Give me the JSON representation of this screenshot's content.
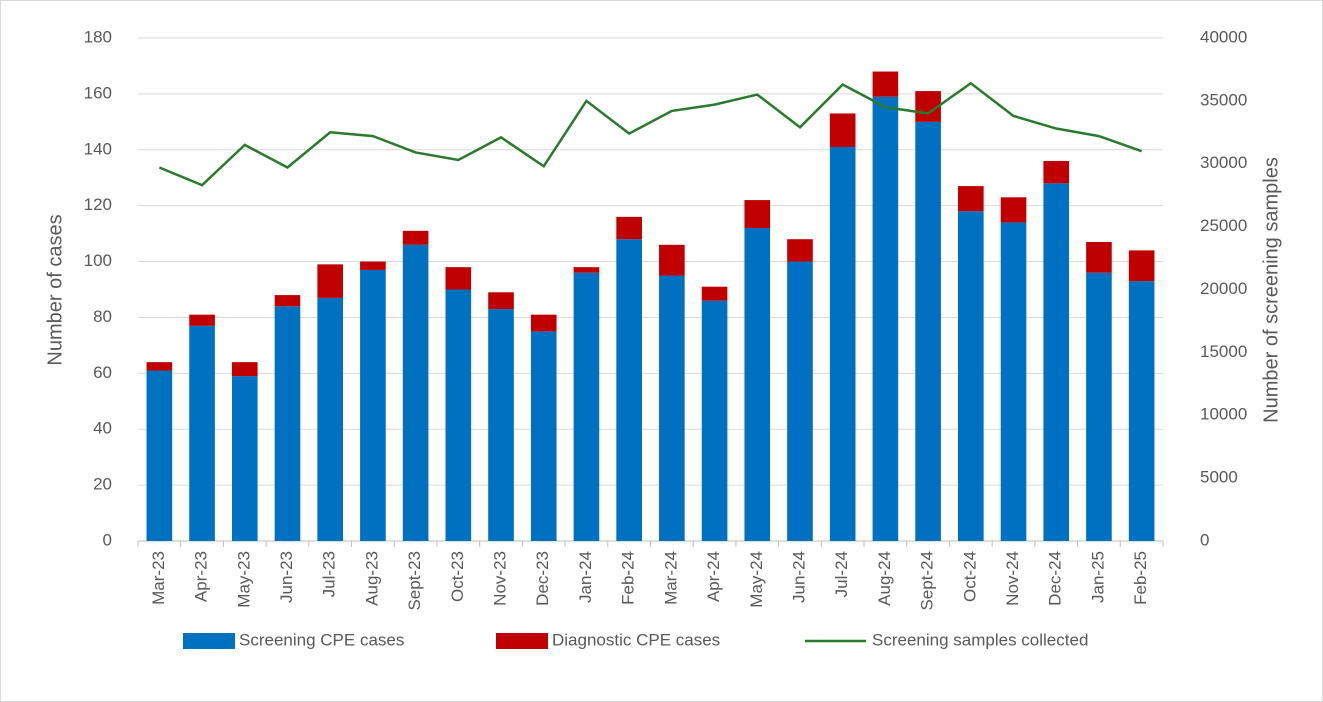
{
  "chart_data": {
    "type": "bar",
    "y_label": "Number of cases",
    "y2_label": "Number of screening samples",
    "categories": [
      "Mar-23",
      "Apr-23",
      "May-23",
      "Jun-23",
      "Jul-23",
      "Aug-23",
      "Sept-23",
      "Oct-23",
      "Nov-23",
      "Dec-23",
      "Jan-24",
      "Feb-24",
      "Mar-24",
      "Apr-24",
      "May-24",
      "Jun-24",
      "Jul-24",
      "Aug-24",
      "Sept-24",
      "Oct-24",
      "Nov-24",
      "Dec-24",
      "Jan-25",
      "Feb-25"
    ],
    "series": [
      {
        "name": "Screening CPE cases",
        "color": "#0070c0",
        "type": "bar",
        "values": [
          61,
          77,
          59,
          84,
          87,
          97,
          106,
          90,
          83,
          75,
          96,
          108,
          95,
          86,
          112,
          100,
          141,
          159,
          150,
          118,
          114,
          128,
          96,
          93
        ]
      },
      {
        "name": "Diagnostic CPE cases",
        "color": "#c00000",
        "type": "bar",
        "values": [
          3,
          4,
          5,
          4,
          12,
          3,
          5,
          8,
          6,
          6,
          2,
          8,
          11,
          5,
          10,
          8,
          12,
          9,
          11,
          9,
          9,
          8,
          11,
          11
        ]
      },
      {
        "name": "Screening samples collected",
        "color": "#2a7a2e",
        "type": "line",
        "axis": "y2",
        "values": [
          29700,
          28300,
          31500,
          29700,
          32500,
          32200,
          30900,
          30300,
          32100,
          29800,
          35000,
          32400,
          34200,
          34700,
          35500,
          32900,
          36300,
          34500,
          34000,
          36400,
          33800,
          32800,
          32200,
          31000
        ]
      }
    ],
    "stacked": true,
    "ylim": [
      0,
      180
    ],
    "yticks": [
      0,
      20,
      40,
      60,
      80,
      100,
      120,
      140,
      160,
      180
    ],
    "y2lim": [
      0,
      40000
    ],
    "y2ticks": [
      0,
      5000,
      10000,
      15000,
      20000,
      25000,
      30000,
      35000,
      40000
    ],
    "grid": true,
    "legend": "bottom"
  }
}
